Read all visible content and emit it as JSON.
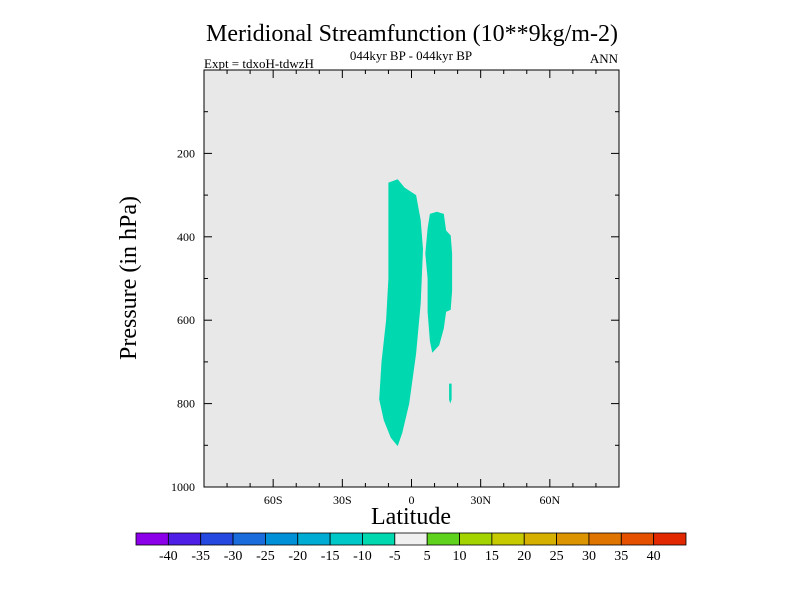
{
  "chart_data": {
    "type": "contour",
    "title": "Meridional Streamfunction (10**9kg/m-2)",
    "subtitle": "044kyr BP - 044kyr BP",
    "left_label": "Expt = tdxoH-tdwzH",
    "right_label": "ANN",
    "xlabel": "Latitude",
    "ylabel": "Pressure (in hPa)",
    "xlim": [
      -90,
      90
    ],
    "ylim": [
      0,
      1000
    ],
    "y_inverted": true,
    "x_ticks": [
      {
        "value": -60,
        "label": "60S"
      },
      {
        "value": -30,
        "label": "30S"
      },
      {
        "value": 0,
        "label": "0"
      },
      {
        "value": 30,
        "label": "30N"
      },
      {
        "value": 60,
        "label": "60N"
      }
    ],
    "y_ticks": [
      {
        "value": 200,
        "label": "200"
      },
      {
        "value": 400,
        "label": "400"
      },
      {
        "value": 600,
        "label": "600"
      },
      {
        "value": 800,
        "label": "800"
      },
      {
        "value": 1000,
        "label": "1000"
      }
    ],
    "background_color": "#e8e8e8",
    "regions": [
      {
        "level": "-10 to -5",
        "color": "#00d8b0",
        "polygon": [
          [
            -10,
            270
          ],
          [
            -6,
            262
          ],
          [
            -3,
            282
          ],
          [
            2,
            300
          ],
          [
            4,
            360
          ],
          [
            5,
            430
          ],
          [
            4,
            560
          ],
          [
            2,
            680
          ],
          [
            -1,
            800
          ],
          [
            -4,
            870
          ],
          [
            -6,
            902
          ],
          [
            -9,
            882
          ],
          [
            -12,
            840
          ],
          [
            -14,
            790
          ],
          [
            -13,
            700
          ],
          [
            -11,
            600
          ],
          [
            -10,
            500
          ],
          [
            -10,
            420
          ],
          [
            -10,
            350
          ]
        ]
      },
      {
        "level": "-10 to -5",
        "color": "#00d8b0",
        "polygon": [
          [
            8,
            345
          ],
          [
            11,
            340
          ],
          [
            14,
            345
          ],
          [
            15,
            385
          ],
          [
            17,
            397
          ],
          [
            17.6,
            440
          ],
          [
            17.6,
            530
          ],
          [
            17,
            575
          ],
          [
            15,
            580
          ],
          [
            14,
            620
          ],
          [
            12,
            660
          ],
          [
            9,
            678
          ],
          [
            8,
            650
          ],
          [
            7,
            580
          ],
          [
            7,
            500
          ],
          [
            6,
            440
          ],
          [
            7,
            380
          ]
        ]
      },
      {
        "level": "-10 to -5",
        "color": "#00d8b0",
        "polygon": [
          [
            16.3,
            752
          ],
          [
            17.4,
            752
          ],
          [
            17.4,
            790
          ],
          [
            16.8,
            800
          ],
          [
            16.3,
            790
          ]
        ]
      }
    ],
    "colorbar": {
      "colors": [
        "#8b00e8",
        "#4f1ee6",
        "#2448e0",
        "#1a6cdc",
        "#0090d8",
        "#00acd4",
        "#00c8c8",
        "#00d8b0",
        "#f0f0f0",
        "#5fd21e",
        "#a3d400",
        "#c8ca00",
        "#d6b000",
        "#dc9400",
        "#e07400",
        "#e45000",
        "#e22800"
      ],
      "labels": [
        "-40",
        "-35",
        "-30",
        "-25",
        "-20",
        "-15",
        "-10",
        "-5",
        "5",
        "10",
        "15",
        "20",
        "25",
        "30",
        "35",
        "40"
      ]
    }
  }
}
